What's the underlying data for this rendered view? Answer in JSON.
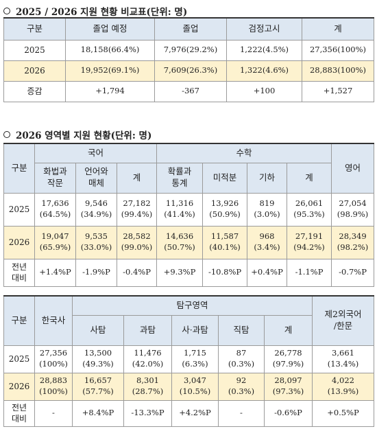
{
  "sections": [
    {
      "title": "2025 / 2026 지원 현황 비교표(단위: 명)",
      "tables": [
        {
          "header": [
            [
              "구분",
              "졸업 예정",
              "졸업",
              "검정고시",
              "계"
            ]
          ],
          "rows": [
            [
              "2025",
              "18,158(66.4%)",
              "7,976(29.2%)",
              "1,222(4.5%)",
              "27,356(100%)"
            ],
            [
              "2026",
              "19,952(69.1%)",
              "7,609(26.3%)",
              "1,322(4.6%)",
              "28,883(100%)"
            ],
            [
              "증감",
              "+1,794",
              "-367",
              "+100",
              "+1,527"
            ]
          ]
        }
      ]
    },
    {
      "title": "2026 영역별 지원 현황(단위: 명)",
      "tables": [
        {
          "header": [
            [
              "구분",
              "국어",
              "수학",
              "영어"
            ],
            [
              [
                "화법과",
                "작문"
              ],
              [
                "언어와",
                "매체"
              ],
              "계",
              [
                "확률과",
                "통계"
              ],
              "미적분",
              "기하",
              "계"
            ]
          ],
          "rows": [
            [
              "2025",
              [
                "17,636",
                "(64.5%)"
              ],
              [
                "9,546",
                "(34.9%)"
              ],
              [
                "27,182",
                "(99.4%)"
              ],
              [
                "11,316",
                "(41.4%)"
              ],
              [
                "13,926",
                "(50.9%)"
              ],
              [
                "819",
                "(3.0%)"
              ],
              [
                "26,061",
                "(95.3%)"
              ],
              [
                "27,054",
                "(98.9%)"
              ]
            ],
            [
              "2026",
              [
                "19,047",
                "(65.9%)"
              ],
              [
                "9,535",
                "(33.0%)"
              ],
              [
                "28,582",
                "(99.0%)"
              ],
              [
                "14,636",
                "(50.7%)"
              ],
              [
                "11,587",
                "(40.1%)"
              ],
              [
                "968",
                "(3.4%)"
              ],
              [
                "27,191",
                "(94.2%)"
              ],
              [
                "28,349",
                "(98.2%)"
              ]
            ],
            [
              [
                "전년",
                "대비"
              ],
              "+1.4%P",
              "-1.9%P",
              "-0.4%P",
              "+9.3%P",
              "-10.8%P",
              "+0.4%P",
              "-1.1%P",
              "-0.7%P"
            ]
          ]
        },
        {
          "header": [
            [
              "구분",
              "한국사",
              "탐구영역",
              [
                "제2외국어",
                "/한문"
              ]
            ],
            [
              "사탐",
              "과탐",
              "사·과탐",
              "직탐",
              "계"
            ]
          ],
          "rows": [
            [
              "2025",
              [
                "27,356",
                "(100%)"
              ],
              [
                "13,500",
                "(49.3%)"
              ],
              [
                "11,476",
                "(42.0%)"
              ],
              [
                "1,715",
                "(6.3%)"
              ],
              [
                "87",
                "(0.3%)"
              ],
              [
                "26,778",
                "(97.9%)"
              ],
              [
                "3,661",
                "(13.4%)"
              ]
            ],
            [
              "2026",
              [
                "28,883",
                "(100%)"
              ],
              [
                "16,657",
                "(57.7%)"
              ],
              [
                "8,301",
                "(28.7%)"
              ],
              [
                "3,047",
                "(10.5%)"
              ],
              [
                "92",
                "(0.3%)"
              ],
              [
                "28,097",
                "(97.3%)"
              ],
              [
                "4,022",
                "(13.9%)"
              ]
            ],
            [
              [
                "전년",
                "대비"
              ],
              "-",
              "+8.4%P",
              "-13.3%P",
              "+4.2%P",
              "-",
              "-0.6%P",
              "+0.5%P"
            ]
          ]
        }
      ]
    }
  ]
}
